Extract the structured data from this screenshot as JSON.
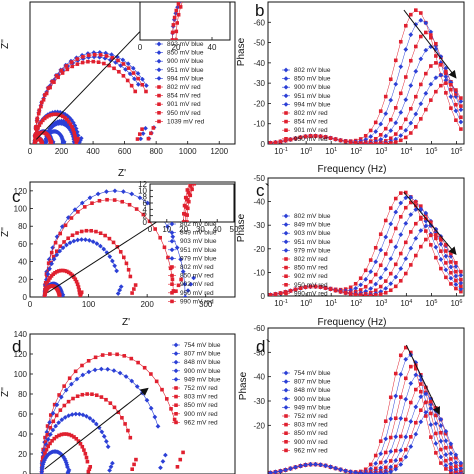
{
  "figure": {
    "background": "#ffffff",
    "colors": {
      "blue": "#2b3fd6",
      "red": "#e0202f",
      "axis": "#111111",
      "arrow": "#111111"
    }
  },
  "chart_data": [
    {
      "id": "a",
      "type": "scatter",
      "panel_letter": "",
      "xlabel": "Z'",
      "ylabel": "Z''",
      "xlim": [
        0,
        1300
      ],
      "ylim": [
        0,
        620
      ],
      "xticks": [
        0,
        200,
        400,
        600,
        800,
        1000,
        1200
      ],
      "yticks": [],
      "legend": {
        "placement": "right",
        "entries": [
          "802 mV blue",
          "850 mV blue",
          "900 mV blue",
          "951 mV blue",
          "994 mV blue",
          "802 mV red",
          "854 mV red",
          "901 mV red",
          "950 mV red",
          "1039 mV red"
        ]
      },
      "arrow": {
        "from": [
          40,
          20
        ],
        "to": [
          780,
          550
        ]
      },
      "series": [
        {
          "color": "blue",
          "semicircles": [
            [
              30,
              800,
              0.78
            ],
            [
              100,
              200,
              1.0
            ]
          ]
        },
        {
          "color": "blue",
          "semicircles": [
            [
              30,
              760,
              0.76
            ],
            [
              100,
              180,
              1.0
            ]
          ]
        },
        {
          "color": "blue",
          "semicircles": [
            [
              30,
              280,
              0.95
            ],
            [
              100,
              110,
              1.0
            ]
          ]
        },
        {
          "color": "blue",
          "semicircles": [
            [
              30,
              110,
              1.0
            ]
          ]
        },
        {
          "color": "blue",
          "semicircles": [
            [
              30,
              50,
              1.0
            ]
          ]
        },
        {
          "color": "red",
          "semicircles": [
            [
              30,
              780,
              0.8
            ]
          ]
        },
        {
          "color": "red",
          "semicircles": [
            [
              30,
              720,
              0.78
            ]
          ]
        },
        {
          "color": "red",
          "semicircles": [
            [
              30,
              260,
              0.95
            ]
          ]
        },
        {
          "color": "red",
          "semicircles": [
            [
              30,
              100,
              1.0
            ]
          ]
        },
        {
          "color": "red",
          "semicircles": [
            [
              30,
              45,
              1.0
            ]
          ]
        }
      ],
      "inset": {
        "xlim": [
          0,
          50
        ],
        "ylim": [
          0,
          12
        ],
        "xticks": [
          0,
          20,
          40
        ],
        "series": [
          {
            "color": "blue",
            "semicircles": [
              [
                18,
                40,
                0.9
              ]
            ]
          },
          {
            "color": "red",
            "semicircles": [
              [
                18,
                42,
                0.95
              ]
            ]
          },
          {
            "color": "red",
            "semicircles": [
              [
                20,
                45,
                1.0
              ]
            ]
          }
        ]
      }
    },
    {
      "id": "b",
      "type": "scatter",
      "panel_letter": "b",
      "xlabel": "Frequency (Hz)",
      "ylabel": "Phase",
      "xlog": true,
      "xlim": [
        0.03,
        2000000
      ],
      "ylim": [
        0,
        -70
      ],
      "xticks": [
        0.1,
        1,
        10,
        100,
        1000,
        10000,
        100000,
        1000000
      ],
      "yticks": [
        -60,
        -50,
        -40,
        -30,
        -20,
        -10,
        0
      ],
      "legend": {
        "placement": "center-left",
        "entries": [
          "802 mV blue",
          "850 mV blue",
          "900 mV blue",
          "951 mV blue",
          "994 mV blue",
          "802 mV red",
          "854 mV red",
          "901 mV red",
          "950 mV red"
        ]
      },
      "arrow": {
        "from": [
          8000,
          -66
        ],
        "to": [
          900000,
          -33
        ]
      },
      "series": [
        {
          "color": "red",
          "peak_log": 4.4,
          "peak": -66,
          "width": 0.75
        },
        {
          "color": "blue",
          "peak_log": 4.6,
          "peak": -61,
          "width": 0.75
        },
        {
          "color": "red",
          "peak_log": 4.8,
          "peak": -55,
          "width": 0.72
        },
        {
          "color": "blue",
          "peak_log": 5.0,
          "peak": -48,
          "width": 0.72
        },
        {
          "color": "red",
          "peak_log": 5.2,
          "peak": -40,
          "width": 0.7
        },
        {
          "color": "blue",
          "peak_log": 5.4,
          "peak": -34,
          "width": 0.7
        },
        {
          "color": "red",
          "peak_log": 5.6,
          "peak": -30,
          "width": 0.68
        }
      ]
    },
    {
      "id": "c",
      "type": "scatter",
      "panel_letter": "c",
      "xlabel": "Z'",
      "ylabel": "Z''",
      "xlim": [
        0,
        350
      ],
      "ylim": [
        0,
        130
      ],
      "xticks": [
        0,
        100,
        200,
        300
      ],
      "yticks": [
        0,
        20,
        40,
        60,
        80,
        100,
        120
      ],
      "legend": {
        "placement": "right",
        "entries": [
          "802 mV blue",
          "849 mV blue",
          "903 mV blue",
          "951 mV blue",
          "979 mV blue",
          "802 mV red",
          "850 mV red",
          "902 mV red",
          "950 mV red",
          "990 mV red"
        ]
      },
      "arrow": {
        "from": [
          30,
          5
        ],
        "to": [
          240,
          95
        ]
      },
      "series": [
        {
          "color": "blue",
          "semicircles": [
            [
              25,
              240,
              1.0
            ]
          ]
        },
        {
          "color": "red",
          "semicircles": [
            [
              25,
              220,
              0.98
            ]
          ]
        },
        {
          "color": "red",
          "semicircles": [
            [
              25,
              150,
              0.9
            ]
          ]
        },
        {
          "color": "blue",
          "semicircles": [
            [
              25,
              130,
              0.85
            ]
          ]
        },
        {
          "color": "red",
          "semicircles": [
            [
              25,
              60,
              0.95
            ]
          ]
        },
        {
          "color": "blue",
          "semicircles": [
            [
              25,
              30,
              0.9
            ]
          ]
        },
        {
          "color": "red",
          "semicircles": [
            [
              25,
              25,
              0.9
            ]
          ]
        }
      ],
      "inset": {
        "xlim": [
          0,
          50
        ],
        "ylim": [
          0,
          12
        ],
        "xticks": [
          0,
          10,
          20,
          30,
          40,
          50
        ],
        "yticks": [
          0,
          2,
          4,
          6,
          8,
          10,
          12
        ],
        "series": [
          {
            "color": "red",
            "semicircles": [
              [
                20,
                48,
                0.9
              ]
            ]
          },
          {
            "color": "red",
            "semicircles": [
              [
                21,
                44,
                0.9
              ]
            ]
          },
          {
            "color": "red",
            "semicircles": [
              [
                22,
                38,
                0.95
              ]
            ]
          }
        ]
      }
    },
    {
      "id": "c2",
      "type": "scatter",
      "panel_letter": "c`",
      "xlabel": "Frequency (Hz)",
      "ylabel": "Phase",
      "xlog": true,
      "xlim": [
        0.03,
        2000000
      ],
      "ylim": [
        0,
        -50
      ],
      "xticks": [
        0.1,
        1,
        10,
        100,
        1000,
        10000,
        100000,
        1000000
      ],
      "yticks": [
        -50,
        -40,
        -30,
        -20,
        -10,
        0
      ],
      "legend": {
        "placement": "center-left",
        "entries": [
          "802 mV blue",
          "849 mV blue",
          "903 mV blue",
          "951 mV blue",
          "979 mV blue",
          "802 mV red",
          "850 mV red",
          "902 mV red",
          "950 mV red",
          "990 mV red"
        ]
      },
      "arrow": {
        "from": [
          8000,
          -44
        ],
        "to": [
          900000,
          -18
        ]
      },
      "series": [
        {
          "color": "red",
          "peak_log": 3.9,
          "peak": -44,
          "width": 0.8
        },
        {
          "color": "blue",
          "peak_log": 4.1,
          "peak": -42,
          "width": 0.8
        },
        {
          "color": "red",
          "peak_log": 4.3,
          "peak": -40,
          "width": 0.78
        },
        {
          "color": "blue",
          "peak_log": 4.5,
          "peak": -37,
          "width": 0.76
        },
        {
          "color": "red",
          "peak_log": 4.7,
          "peak": -33,
          "width": 0.74
        },
        {
          "color": "blue",
          "peak_log": 4.9,
          "peak": -30,
          "width": 0.72
        },
        {
          "color": "red",
          "peak_log": 5.1,
          "peak": -26,
          "width": 0.7
        }
      ]
    },
    {
      "id": "d",
      "type": "scatter",
      "panel_letter": "d",
      "xlabel": "",
      "ylabel": "Z''",
      "xlim": [
        0,
        350
      ],
      "ylim": [
        0,
        140
      ],
      "xticks": [],
      "yticks": [
        0,
        20,
        40,
        60,
        80,
        100,
        120,
        140
      ],
      "legend": {
        "placement": "right",
        "entries": [
          "754 mV blue",
          "807 mV blue",
          "848 mV blue",
          "900 mV blue",
          "949 mV blue",
          "752 mV red",
          "803 mV red",
          "850 mV red",
          "900 mV red",
          "962 mV red"
        ]
      },
      "arrow": {
        "from": [
          25,
          5
        ],
        "to": [
          200,
          85
        ]
      },
      "series": [
        {
          "color": "red",
          "semicircles": [
            [
              20,
              240,
              0.85
            ]
          ]
        },
        {
          "color": "blue",
          "semicircles": [
            [
              20,
              210,
              0.85
            ]
          ]
        },
        {
          "color": "red",
          "semicircles": [
            [
              20,
              160,
              0.85
            ]
          ]
        },
        {
          "color": "blue",
          "semicircles": [
            [
              20,
              120,
              0.85
            ]
          ]
        },
        {
          "color": "red",
          "semicircles": [
            [
              20,
              80,
              0.9
            ]
          ]
        },
        {
          "color": "blue",
          "semicircles": [
            [
              20,
              45,
              0.9
            ]
          ]
        }
      ]
    },
    {
      "id": "d2",
      "type": "scatter",
      "panel_letter": "d`",
      "xlabel": "",
      "ylabel": "Phase",
      "xlog": true,
      "xlim": [
        0.03,
        2000000
      ],
      "ylim": [
        0,
        -60
      ],
      "xticks": [],
      "yticks": [
        -60,
        -50,
        -40,
        -30,
        -20
      ],
      "legend": {
        "placement": "center-left",
        "entries": [
          "754 mV blue",
          "807 mV blue",
          "848 mV blue",
          "900 mV blue",
          "949 mV blue",
          "752 mV red",
          "803 mV red",
          "850 mV red",
          "900 mV red",
          "962 mV red"
        ]
      },
      "arrow": {
        "from": [
          10000,
          -53
        ],
        "to": [
          200000,
          -25
        ]
      },
      "series": [
        {
          "color": "red",
          "peak_log": 4.0,
          "peak": -52,
          "width": 0.55
        },
        {
          "color": "blue",
          "peak_log": 4.15,
          "peak": -49,
          "width": 0.55
        },
        {
          "color": "red",
          "peak_log": 4.3,
          "peak": -45,
          "width": 0.55
        },
        {
          "color": "blue",
          "peak_log": 4.45,
          "peak": -41,
          "width": 0.55
        },
        {
          "color": "red",
          "peak_log": 4.6,
          "peak": -37,
          "width": 0.55
        },
        {
          "color": "blue",
          "peak_log": 4.75,
          "peak": -33,
          "width": 0.55
        },
        {
          "color": "red",
          "peak_log": 4.9,
          "peak": -30,
          "width": 0.55
        },
        {
          "color": "blue",
          "peak_log": 5.0,
          "peak": -27,
          "width": 0.55
        }
      ]
    }
  ]
}
